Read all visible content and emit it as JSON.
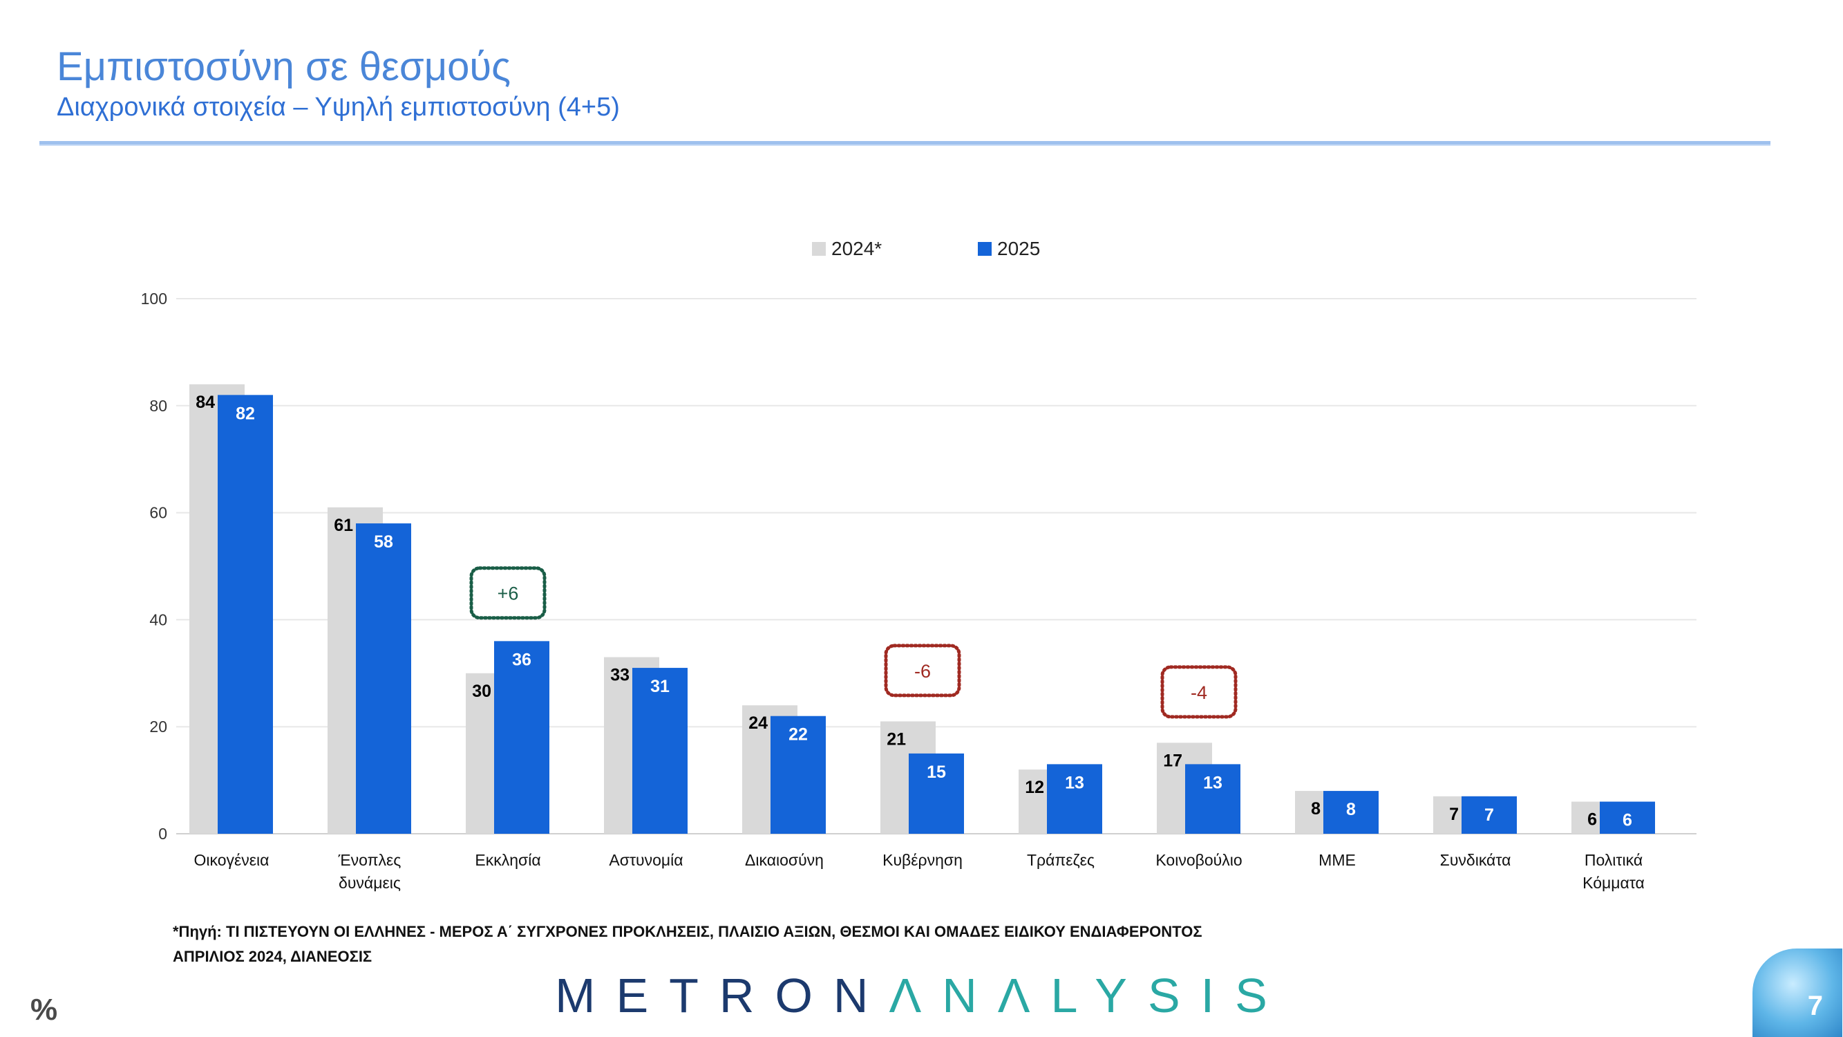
{
  "page": {
    "title": "Εμπιστοσύνη σε θεσμούς",
    "subtitle": "Διαχρονικά στοιχεία – Υψηλή εμπιστοσύνη (4+5)",
    "footnote_line1": "*Πηγή: ΤΙ ΠΙΣΤΕΥΟΥΝ ΟΙ ΕΛΛΗΝΕΣ - ΜΕΡΟΣ Α΄ ΣΥΓΧΡΟΝΕΣ ΠΡΟΚΛΗΣΕΙΣ, ΠΛΑΙΣΙΟ ΑΞΙΩΝ, ΘΕΣΜΟΙ ΚΑΙ ΟΜΑΔΕΣ ΕΙΔΙΚΟΥ ΕΝΔΙΑΦΕΡΟΝΤΟΣ",
    "footnote_line2": "ΑΠΡΙΛΙΟΣ 2024, ΔΙΑΝΕΟΣΙΣ",
    "logo_part1": "METRON",
    "logo_part2": "ΛNΛLYSIS",
    "percent_sign": "%",
    "page_number": "7"
  },
  "chart_data": {
    "type": "bar",
    "categories": [
      [
        "Οικογένεια"
      ],
      [
        "Ένοπλες",
        "δυνάμεις"
      ],
      [
        "Εκκλησία"
      ],
      [
        "Αστυνομία"
      ],
      [
        "Δικαιοσύνη"
      ],
      [
        "Κυβέρνηση"
      ],
      [
        "Τράπεζες"
      ],
      [
        "Κοινοβούλιο"
      ],
      [
        "ΜΜΕ"
      ],
      [
        "Συνδικάτα"
      ],
      [
        "Πολιτικά",
        "Κόμματα"
      ]
    ],
    "series": [
      {
        "name": "2024*",
        "color": "#d9d9d9",
        "values": [
          84,
          61,
          30,
          33,
          24,
          21,
          12,
          17,
          8,
          7,
          6
        ],
        "label_color": "#000000"
      },
      {
        "name": "2025",
        "color": "#1464d8",
        "values": [
          82,
          58,
          36,
          31,
          22,
          15,
          13,
          13,
          8,
          7,
          6
        ],
        "label_color": "#ffffff"
      }
    ],
    "ylim": [
      0,
      100
    ],
    "yticks": [
      0,
      20,
      40,
      60,
      80,
      100
    ],
    "grid": true,
    "legend_position": "top",
    "annotations": [
      {
        "category_index": 2,
        "text": "+6",
        "color": "#1a5e47",
        "y_value": 45
      },
      {
        "category_index": 5,
        "text": "-6",
        "color": "#a02a22",
        "y_value": 30.5
      },
      {
        "category_index": 7,
        "text": "-4",
        "color": "#a02a22",
        "y_value": 26.5
      }
    ]
  }
}
